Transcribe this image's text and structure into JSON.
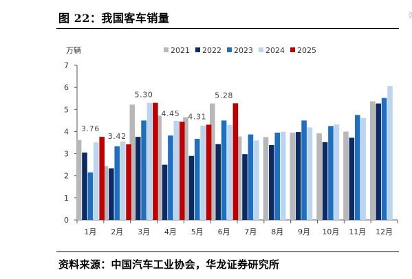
{
  "header": {
    "title": "图 22：我国客车销量"
  },
  "footer": {
    "source": "资料来源：中国汽车工业协会，华龙证券研究所"
  },
  "colors": {
    "2021": "#b8b8b8",
    "2022": "#0d2a63",
    "2023": "#1f6fc1",
    "2024": "#bcd5ef",
    "2025": "#c00000"
  },
  "chart_data": {
    "type": "bar",
    "title": "",
    "xlabel": "",
    "ylabel": "万辆",
    "ylim": [
      0,
      7
    ],
    "yticks": [
      0,
      1,
      2,
      3,
      4,
      5,
      6,
      7
    ],
    "grid": false,
    "legend": "top",
    "categories": [
      "1月",
      "2月",
      "3月",
      "4月",
      "5月",
      "6月",
      "7月",
      "8月",
      "9月",
      "10月",
      "11月",
      "12月"
    ],
    "series": [
      {
        "name": "2021",
        "color": "#b8b8b8",
        "values": [
          3.62,
          2.43,
          5.22,
          4.72,
          4.65,
          5.27,
          3.78,
          3.75,
          3.95,
          3.92,
          4.0,
          5.37
        ]
      },
      {
        "name": "2022",
        "color": "#0d2a63",
        "values": [
          3.05,
          2.33,
          3.76,
          2.5,
          2.9,
          3.43,
          2.98,
          3.39,
          3.98,
          3.52,
          3.72,
          5.27
        ]
      },
      {
        "name": "2023",
        "color": "#1f6fc1",
        "values": [
          2.15,
          3.33,
          4.5,
          3.82,
          3.67,
          4.5,
          3.87,
          3.95,
          4.5,
          4.25,
          4.75,
          5.52
        ]
      },
      {
        "name": "2024",
        "color": "#bcd5ef",
        "values": [
          3.51,
          3.55,
          5.3,
          4.48,
          4.27,
          4.3,
          3.6,
          3.99,
          4.19,
          4.32,
          4.62,
          6.06
        ]
      },
      {
        "name": "2025",
        "color": "#c00000",
        "values": [
          3.76,
          3.42,
          5.3,
          4.45,
          4.31,
          5.28,
          null,
          null,
          null,
          null,
          null,
          null
        ]
      }
    ],
    "data_labels": [
      {
        "category_index": 0,
        "text": "3.76"
      },
      {
        "category_index": 1,
        "text": "3.42"
      },
      {
        "category_index": 2,
        "text": "5.30"
      },
      {
        "category_index": 3,
        "text": "4.45"
      },
      {
        "category_index": 4,
        "text": "4.31"
      },
      {
        "category_index": 5,
        "text": "5.28"
      }
    ]
  }
}
